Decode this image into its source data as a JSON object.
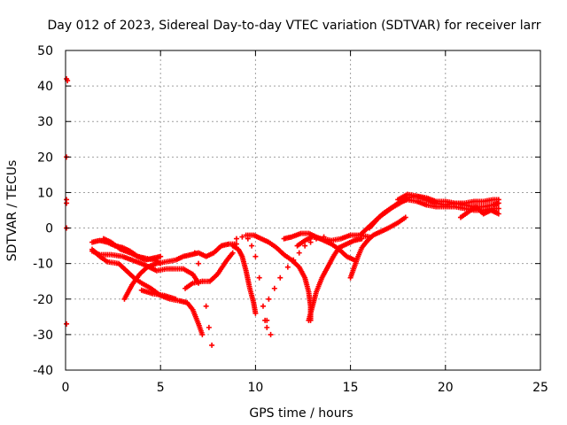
{
  "chart_data": {
    "type": "scatter",
    "title": "Day 012 of 2023, Sidereal Day-to-day VTEC variation (SDTVAR) for receiver larr",
    "xlabel": "GPS time / hours",
    "ylabel": "SDTVAR / TECUs",
    "xlim": [
      0,
      25
    ],
    "ylim": [
      -40,
      50
    ],
    "xticks": [
      0,
      5,
      10,
      15,
      20,
      25
    ],
    "yticks": [
      -40,
      -30,
      -20,
      -10,
      0,
      10,
      20,
      30,
      40,
      50
    ],
    "grid": true,
    "marker": "+",
    "color": "#ff0000",
    "series": [
      {
        "points": [
          [
            0.05,
            42
          ],
          [
            0.1,
            41.5
          ],
          [
            0.05,
            20
          ],
          [
            0.05,
            8
          ],
          [
            0.05,
            7
          ],
          [
            0.05,
            0
          ],
          [
            0.05,
            -27
          ]
        ]
      },
      {
        "points": [
          [
            1.4,
            -6
          ],
          [
            1.8,
            -8
          ],
          [
            2.2,
            -9.5
          ],
          [
            2.8,
            -10
          ],
          [
            3.2,
            -12
          ],
          [
            3.6,
            -14
          ],
          [
            4.0,
            -15.5
          ],
          [
            4.5,
            -17
          ],
          [
            5.0,
            -19
          ],
          [
            5.5,
            -20
          ],
          [
            6.0,
            -20.5
          ],
          [
            6.4,
            -21
          ],
          [
            6.7,
            -23
          ],
          [
            7.0,
            -27
          ],
          [
            7.2,
            -30
          ]
        ]
      },
      {
        "points": [
          [
            1.4,
            -4
          ],
          [
            1.8,
            -3.5
          ],
          [
            2.2,
            -4
          ],
          [
            2.6,
            -5
          ],
          [
            3.0,
            -5.5
          ],
          [
            3.4,
            -6.5
          ],
          [
            3.8,
            -8
          ],
          [
            4.2,
            -9
          ],
          [
            4.6,
            -8.5
          ],
          [
            5.0,
            -8
          ]
        ]
      },
      {
        "points": [
          [
            1.4,
            -6.5
          ],
          [
            1.8,
            -7.5
          ],
          [
            2.4,
            -7.5
          ],
          [
            3.0,
            -8
          ],
          [
            3.5,
            -9
          ],
          [
            4.0,
            -10
          ],
          [
            4.4,
            -11
          ],
          [
            4.8,
            -12
          ],
          [
            5.3,
            -11.5
          ],
          [
            5.8,
            -11.5
          ],
          [
            6.2,
            -11.5
          ],
          [
            6.7,
            -13
          ],
          [
            7.0,
            -15.5
          ]
        ]
      },
      {
        "points": [
          [
            3.1,
            -20
          ],
          [
            3.5,
            -16
          ],
          [
            3.9,
            -13
          ],
          [
            4.3,
            -11
          ],
          [
            4.8,
            -10
          ],
          [
            5.3,
            -9.5
          ],
          [
            5.8,
            -9
          ],
          [
            6.2,
            -8
          ],
          [
            6.6,
            -7.5
          ],
          [
            7.0,
            -7
          ],
          [
            7.4,
            -8
          ],
          [
            7.8,
            -7
          ],
          [
            8.2,
            -5
          ],
          [
            8.6,
            -4.5
          ],
          [
            9.0,
            -4.5
          ]
        ]
      },
      {
        "points": [
          [
            2.0,
            -3
          ],
          [
            2.4,
            -4
          ],
          [
            2.9,
            -6
          ],
          [
            3.4,
            -7
          ],
          [
            3.8,
            -8
          ],
          [
            4.2,
            -8.5
          ],
          [
            4.7,
            -9
          ],
          [
            5.0,
            -10
          ]
        ]
      },
      {
        "points": [
          [
            4.0,
            -17.5
          ],
          [
            4.6,
            -18.5
          ],
          [
            5.2,
            -19
          ],
          [
            5.8,
            -20
          ]
        ]
      },
      {
        "points": [
          [
            6.3,
            -17
          ],
          [
            6.7,
            -15.5
          ],
          [
            7.2,
            -15
          ],
          [
            7.6,
            -15
          ],
          [
            8.0,
            -13
          ],
          [
            8.5,
            -9
          ],
          [
            8.8,
            -7
          ]
        ]
      },
      {
        "points": [
          [
            6.8,
            -7
          ],
          [
            7.0,
            -10
          ],
          [
            7.2,
            -15
          ],
          [
            7.4,
            -22
          ],
          [
            7.55,
            -28
          ],
          [
            7.7,
            -33
          ]
        ]
      },
      {
        "points": [
          [
            9.0,
            -3
          ],
          [
            9.3,
            -2.5
          ],
          [
            9.6,
            -3
          ],
          [
            9.8,
            -5
          ],
          [
            10.0,
            -8
          ],
          [
            10.2,
            -14
          ],
          [
            10.4,
            -22
          ],
          [
            10.5,
            -26
          ],
          [
            10.6,
            -28
          ]
        ]
      },
      {
        "points": [
          [
            8.8,
            -5
          ],
          [
            9.1,
            -6
          ],
          [
            9.3,
            -8
          ],
          [
            9.5,
            -12
          ],
          [
            9.7,
            -17
          ],
          [
            9.9,
            -21
          ],
          [
            10.0,
            -24
          ]
        ]
      },
      {
        "points": [
          [
            9.5,
            -2
          ],
          [
            9.9,
            -2
          ],
          [
            10.3,
            -3
          ],
          [
            10.7,
            -4
          ],
          [
            11.1,
            -5.5
          ],
          [
            11.5,
            -7.5
          ],
          [
            11.9,
            -9
          ],
          [
            12.3,
            -11
          ],
          [
            12.6,
            -14
          ],
          [
            12.8,
            -18
          ],
          [
            12.9,
            -22
          ],
          [
            12.9,
            -26
          ]
        ]
      },
      {
        "points": [
          [
            10.6,
            -26
          ],
          [
            10.8,
            -30
          ],
          [
            10.7,
            -20
          ],
          [
            11.0,
            -17
          ],
          [
            11.3,
            -14
          ],
          [
            11.7,
            -11
          ],
          [
            12.0,
            -9
          ],
          [
            12.3,
            -7
          ],
          [
            12.6,
            -5
          ],
          [
            12.9,
            -4
          ],
          [
            13.2,
            -3
          ],
          [
            13.6,
            -2.5
          ]
        ]
      },
      {
        "points": [
          [
            11.5,
            -3
          ],
          [
            11.9,
            -2.5
          ],
          [
            12.4,
            -1.5
          ],
          [
            12.8,
            -1.5
          ],
          [
            13.2,
            -2.5
          ],
          [
            13.6,
            -3.5
          ],
          [
            14.0,
            -4.5
          ],
          [
            14.4,
            -6
          ],
          [
            14.8,
            -8
          ],
          [
            15.2,
            -9
          ]
        ]
      },
      {
        "points": [
          [
            12.8,
            -26
          ],
          [
            13.0,
            -22
          ],
          [
            13.2,
            -18
          ],
          [
            13.5,
            -14
          ],
          [
            13.8,
            -11
          ],
          [
            14.1,
            -8
          ],
          [
            14.4,
            -5.5
          ],
          [
            14.8,
            -4.5
          ],
          [
            15.2,
            -3.5
          ],
          [
            15.6,
            -3
          ]
        ]
      },
      {
        "points": [
          [
            12.2,
            -5
          ],
          [
            12.6,
            -3.5
          ],
          [
            13.0,
            -2.5
          ],
          [
            13.5,
            -3
          ],
          [
            14.0,
            -3.5
          ],
          [
            14.5,
            -3
          ],
          [
            15.0,
            -2
          ],
          [
            15.5,
            -2
          ],
          [
            16.0,
            -2.5
          ]
        ]
      },
      {
        "points": [
          [
            15.0,
            -14
          ],
          [
            15.2,
            -11
          ],
          [
            15.4,
            -8
          ],
          [
            15.6,
            -5.5
          ],
          [
            15.9,
            -3.5
          ],
          [
            16.2,
            -2
          ],
          [
            16.6,
            -1
          ],
          [
            17.0,
            0
          ],
          [
            17.5,
            1.5
          ],
          [
            17.9,
            3
          ]
        ]
      },
      {
        "points": [
          [
            15.5,
            -2
          ],
          [
            15.9,
            0
          ],
          [
            16.3,
            2
          ],
          [
            16.7,
            4
          ],
          [
            17.1,
            5.5
          ],
          [
            17.6,
            7
          ],
          [
            18.0,
            8.5
          ],
          [
            18.5,
            9
          ],
          [
            19.0,
            8
          ],
          [
            19.5,
            7
          ],
          [
            20.0,
            6.5
          ],
          [
            20.5,
            7
          ],
          [
            21.0,
            6.5
          ],
          [
            21.5,
            6
          ],
          [
            22.0,
            6
          ],
          [
            22.5,
            6.5
          ],
          [
            22.8,
            7
          ]
        ]
      },
      {
        "points": [
          [
            16.0,
            0
          ],
          [
            16.5,
            3
          ],
          [
            17.0,
            5
          ],
          [
            17.5,
            7
          ],
          [
            18.0,
            8
          ],
          [
            18.5,
            7.5
          ],
          [
            19.0,
            6.5
          ],
          [
            19.5,
            6
          ],
          [
            20.0,
            6
          ],
          [
            20.5,
            6
          ],
          [
            21.0,
            5.5
          ],
          [
            21.5,
            5
          ],
          [
            22.0,
            5
          ],
          [
            22.5,
            5.5
          ],
          [
            22.8,
            5.5
          ]
        ]
      },
      {
        "points": [
          [
            17.5,
            8
          ],
          [
            18.0,
            9.5
          ],
          [
            18.5,
            9
          ],
          [
            19.0,
            8.5
          ],
          [
            19.5,
            7.5
          ],
          [
            20.0,
            7.5
          ],
          [
            20.5,
            7
          ],
          [
            21.0,
            7
          ],
          [
            21.5,
            7.5
          ],
          [
            22.0,
            7.5
          ],
          [
            22.5,
            8
          ],
          [
            22.8,
            8
          ]
        ]
      },
      {
        "points": [
          [
            20.8,
            3
          ],
          [
            21.2,
            4.5
          ],
          [
            21.6,
            6
          ],
          [
            22.0,
            4
          ],
          [
            22.4,
            5
          ],
          [
            22.8,
            4
          ]
        ]
      }
    ]
  }
}
